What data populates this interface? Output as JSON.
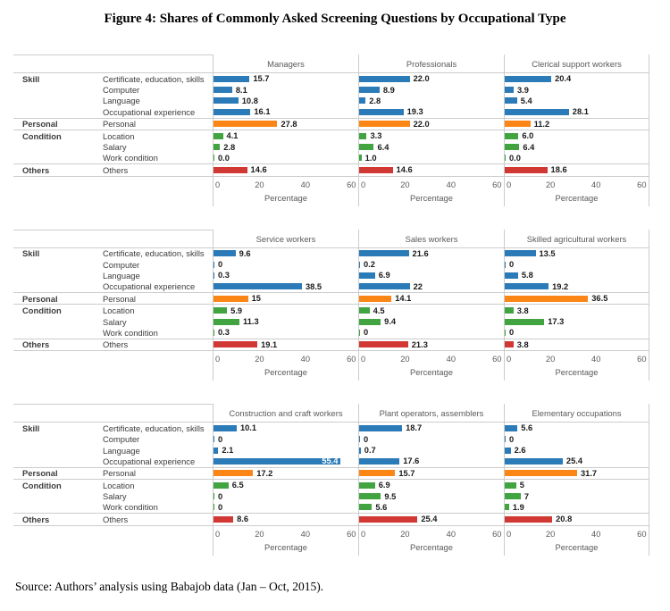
{
  "title": "Figure 4: Shares of Commonly Asked Screening Questions by Occupational Type",
  "source": "Source: Authors’ analysis using Babajob data (Jan – Oct, 2015).",
  "palette": {
    "skill": "#2B7BB9",
    "personal": "#FB8616",
    "condition": "#41A441",
    "others": "#D13834",
    "border": "#CCCCCC",
    "label_text": "#3C3C3C",
    "axis_text": "#5A5A5A",
    "value_text": "#1A1A1A"
  },
  "chart_data": {
    "type": "bar",
    "orientation": "horizontal",
    "xlabel": "Percentage",
    "xlim": [
      0,
      60
    ],
    "xticks": [
      0,
      20,
      40,
      60
    ],
    "axis_max": 63,
    "grid": false,
    "legend": "none",
    "categories": [
      "Certificate, education, skills",
      "Computer",
      "Language",
      "Occupational experience",
      "Personal",
      "Location",
      "Salary",
      "Work condition",
      "Others"
    ],
    "category_group_index": [
      0,
      0,
      0,
      0,
      1,
      2,
      2,
      2,
      3
    ],
    "group_start_rows": [
      0,
      4,
      5,
      8
    ],
    "groups": [
      {
        "label": "Skill",
        "color": "#2B7BB9"
      },
      {
        "label": "Personal",
        "color": "#FB8616"
      },
      {
        "label": "Condition",
        "color": "#41A441"
      },
      {
        "label": "Others",
        "color": "#D13834"
      }
    ],
    "panels": [
      {
        "title": "Managers",
        "values": [
          "15.7",
          "8.1",
          "10.8",
          "16.1",
          "27.8",
          "4.1",
          "2.8",
          "0.0",
          "14.6"
        ]
      },
      {
        "title": "Professionals",
        "values": [
          "22.0",
          "8.9",
          "2.8",
          "19.3",
          "22.0",
          "3.3",
          "6.4",
          "1.0",
          "14.6"
        ]
      },
      {
        "title": "Clerical support workers",
        "values": [
          "20.4",
          "3.9",
          "5.4",
          "28.1",
          "11.2",
          "6.0",
          "6.4",
          "0.0",
          "18.6"
        ]
      },
      {
        "title": "Service workers",
        "values": [
          "9.6",
          "0",
          "0.3",
          "38.5",
          "15",
          "5.9",
          "11.3",
          "0.3",
          "19.1"
        ]
      },
      {
        "title": "Sales workers",
        "values": [
          "21.6",
          "0.2",
          "6.9",
          "22",
          "14.1",
          "4.5",
          "9.4",
          "0",
          "21.3"
        ]
      },
      {
        "title": "Skilled agricultural workers",
        "values": [
          "13.5",
          "0",
          "5.8",
          "19.2",
          "36.5",
          "3.8",
          "17.3",
          "0",
          "3.8"
        ]
      },
      {
        "title": "Construction and craft workers",
        "values": [
          "10.1",
          "0",
          "2.1",
          "55.4",
          "17.2",
          "6.5",
          "0",
          "0",
          "8.6"
        ]
      },
      {
        "title": "Plant operators, assemblers",
        "values": [
          "18.7",
          "0",
          "0.7",
          "17.6",
          "15.7",
          "6.9",
          "9.5",
          "5.6",
          "25.4"
        ]
      },
      {
        "title": "Elementary occupations",
        "values": [
          "5.6",
          "0",
          "2.6",
          "25.4",
          "31.7",
          "5",
          "7",
          "1.9",
          "20.8"
        ]
      }
    ]
  }
}
